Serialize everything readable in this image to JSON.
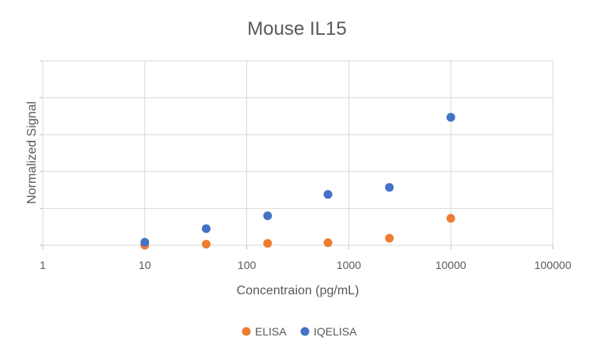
{
  "chart_data": {
    "type": "scatter",
    "title": "Mouse IL15",
    "xlabel": "Concentraion (pg/mL)",
    "ylabel": "Normalized Signal",
    "x_scale": "log",
    "xlim": [
      1,
      100000
    ],
    "x_ticks": [
      "1",
      "10",
      "100",
      "1000",
      "10000",
      "100000"
    ],
    "ylim": [
      0,
      5
    ],
    "y_gridlines": [
      0,
      1,
      2,
      3,
      4,
      5
    ],
    "grid": true,
    "legend_position": "bottom",
    "series": [
      {
        "name": "ELISA",
        "color": "#ED7D31",
        "points": [
          {
            "x": 10,
            "y": 0.0
          },
          {
            "x": 40,
            "y": 0.03
          },
          {
            "x": 160,
            "y": 0.05
          },
          {
            "x": 625,
            "y": 0.07
          },
          {
            "x": 2500,
            "y": 0.19
          },
          {
            "x": 10000,
            "y": 0.73
          }
        ]
      },
      {
        "name": "IQELISA",
        "color": "#4472C4",
        "points": [
          {
            "x": 10,
            "y": 0.08
          },
          {
            "x": 40,
            "y": 0.45
          },
          {
            "x": 160,
            "y": 0.8
          },
          {
            "x": 625,
            "y": 1.38
          },
          {
            "x": 2500,
            "y": 1.57
          },
          {
            "x": 10000,
            "y": 3.47
          }
        ]
      }
    ]
  }
}
